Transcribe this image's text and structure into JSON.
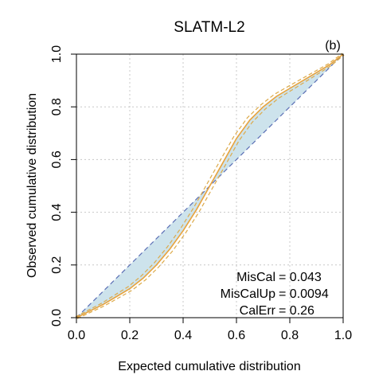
{
  "chart_data": {
    "type": "line",
    "title": "SLATM-L2",
    "panel_label": "(b)",
    "xlabel": "Expected cumulative distribution",
    "ylabel": "Observed cumulative distribution",
    "xlim": [
      0,
      1
    ],
    "ylim": [
      0,
      1
    ],
    "xticks": [
      "0.0",
      "0.2",
      "0.4",
      "0.6",
      "0.8",
      "1.0"
    ],
    "yticks": [
      "0.0",
      "0.2",
      "0.4",
      "0.6",
      "0.8",
      "1.0"
    ],
    "grid": true,
    "reference_line": {
      "x": [
        0,
        1
      ],
      "y": [
        0,
        1
      ],
      "color": "#5b6fb5",
      "style": "dashed"
    },
    "series": [
      {
        "x": [
          0.0,
          0.05,
          0.1,
          0.15,
          0.2,
          0.25,
          0.3,
          0.35,
          0.4,
          0.45,
          0.5,
          0.55,
          0.6,
          0.65,
          0.7,
          0.75,
          0.8,
          0.85,
          0.9,
          0.95,
          1.0
        ],
        "y": [
          0.0,
          0.025,
          0.05,
          0.08,
          0.11,
          0.15,
          0.2,
          0.26,
          0.33,
          0.41,
          0.5,
          0.59,
          0.68,
          0.75,
          0.8,
          0.84,
          0.87,
          0.9,
          0.93,
          0.96,
          1.0
        ],
        "color": "#e8a33d",
        "band_color": "#dcaa4a",
        "fill_color": "#cde3ec"
      }
    ],
    "stats": [
      {
        "label": "MisCal",
        "value": "= 0.043"
      },
      {
        "label": "MisCalUp",
        "value": "= 0.0094"
      },
      {
        "label": "CalErr",
        "value": "= 0.26"
      }
    ]
  }
}
